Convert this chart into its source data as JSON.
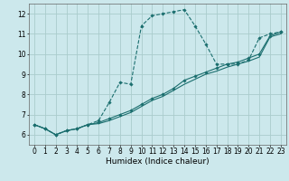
{
  "title": "",
  "xlabel": "Humidex (Indice chaleur)",
  "bg_color": "#cce8ec",
  "grid_color": "#aacccc",
  "line_color": "#1a6e6e",
  "line1_x": [
    0,
    1,
    2,
    3,
    4,
    5,
    6,
    7,
    8,
    9,
    10,
    11,
    12,
    13,
    14,
    15,
    16,
    17,
    18,
    19,
    20,
    21,
    22,
    23
  ],
  "line1_y": [
    6.5,
    6.3,
    6.0,
    6.2,
    6.3,
    6.5,
    6.7,
    7.6,
    8.6,
    8.5,
    11.4,
    11.9,
    12.0,
    12.1,
    12.2,
    11.4,
    10.5,
    9.5,
    9.5,
    9.5,
    9.7,
    10.8,
    11.0,
    11.1
  ],
  "line2_x": [
    0,
    1,
    2,
    3,
    4,
    5,
    6,
    7,
    8,
    9,
    10,
    11,
    12,
    13,
    14,
    15,
    16,
    17,
    18,
    19,
    20,
    21,
    22,
    23
  ],
  "line2_y": [
    6.5,
    6.3,
    6.0,
    6.2,
    6.3,
    6.5,
    6.6,
    6.8,
    7.0,
    7.2,
    7.5,
    7.8,
    8.0,
    8.3,
    8.7,
    8.9,
    9.1,
    9.3,
    9.5,
    9.6,
    9.8,
    10.0,
    10.9,
    11.1
  ],
  "line3_x": [
    0,
    1,
    2,
    3,
    4,
    5,
    6,
    7,
    8,
    9,
    10,
    11,
    12,
    13,
    14,
    15,
    16,
    17,
    18,
    19,
    20,
    21,
    22,
    23
  ],
  "line3_y": [
    6.5,
    6.3,
    6.0,
    6.2,
    6.3,
    6.5,
    6.55,
    6.7,
    6.9,
    7.1,
    7.4,
    7.7,
    7.9,
    8.2,
    8.5,
    8.75,
    9.0,
    9.15,
    9.35,
    9.5,
    9.65,
    9.85,
    10.85,
    11.0
  ],
  "xlim": [
    -0.5,
    23.5
  ],
  "ylim": [
    5.5,
    12.5
  ],
  "xticks": [
    0,
    1,
    2,
    3,
    4,
    5,
    6,
    7,
    8,
    9,
    10,
    11,
    12,
    13,
    14,
    15,
    16,
    17,
    18,
    19,
    20,
    21,
    22,
    23
  ],
  "yticks": [
    6,
    7,
    8,
    9,
    10,
    11,
    12
  ],
  "tick_fontsize": 5.5,
  "label_fontsize": 6.5
}
